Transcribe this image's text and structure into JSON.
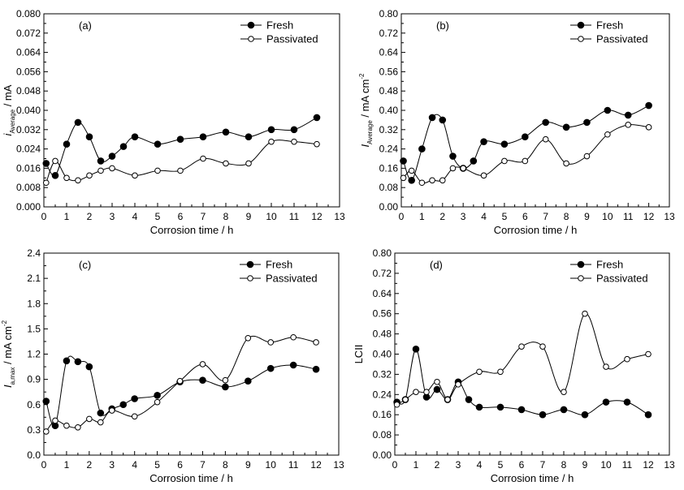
{
  "chart_data": [
    {
      "type": "scatter",
      "panel_label": "(a)",
      "xlabel": "Corrosion time / h",
      "ylabel": {
        "main": "i",
        "sub": "Average",
        "unit": " / mA",
        "sup": ""
      },
      "xlim": [
        0,
        13
      ],
      "ylim": [
        0,
        0.08
      ],
      "xticks": [
        "0",
        "1",
        "2",
        "3",
        "4",
        "5",
        "6",
        "7",
        "8",
        "9",
        "10",
        "11",
        "12",
        "13"
      ],
      "yticks": [
        "0.000",
        "0.008",
        "0.016",
        "0.024",
        "0.032",
        "0.040",
        "0.048",
        "0.056",
        "0.064",
        "0.072",
        "0.080"
      ],
      "legend_position": "top-right",
      "series": [
        {
          "name": "Fresh",
          "marker": "filled-circle",
          "x": [
            0.1,
            0.5,
            1,
            1.5,
            2,
            2.5,
            3,
            3.5,
            4,
            5,
            6,
            7,
            8,
            9,
            10,
            11,
            12
          ],
          "y": [
            0.018,
            0.013,
            0.026,
            0.035,
            0.029,
            0.019,
            0.021,
            0.025,
            0.029,
            0.026,
            0.028,
            0.029,
            0.031,
            0.029,
            0.032,
            0.032,
            0.037
          ]
        },
        {
          "name": "Passivated",
          "marker": "open-circle",
          "x": [
            0.1,
            0.5,
            1,
            1.5,
            2,
            2.5,
            3,
            4,
            5,
            6,
            7,
            8,
            9,
            10,
            11,
            12
          ],
          "y": [
            0.01,
            0.019,
            0.012,
            0.011,
            0.013,
            0.015,
            0.016,
            0.013,
            0.015,
            0.015,
            0.02,
            0.018,
            0.018,
            0.027,
            0.027,
            0.026
          ]
        }
      ]
    },
    {
      "type": "scatter",
      "panel_label": "(b)",
      "xlabel": "Corrosion time / h",
      "ylabel": {
        "main": "I",
        "sub": "Average",
        "unit": " / mA cm",
        "sup": "-2"
      },
      "xlim": [
        0,
        13
      ],
      "ylim": [
        0,
        0.8
      ],
      "xticks": [
        "0",
        "1",
        "2",
        "3",
        "4",
        "5",
        "6",
        "7",
        "8",
        "9",
        "10",
        "11",
        "12",
        "13"
      ],
      "yticks": [
        "0.00",
        "0.08",
        "0.16",
        "0.24",
        "0.32",
        "0.40",
        "0.48",
        "0.56",
        "0.64",
        "0.72",
        "0.80"
      ],
      "legend_position": "top-right",
      "series": [
        {
          "name": "Fresh",
          "marker": "filled-circle",
          "x": [
            0.1,
            0.5,
            1,
            1.5,
            2,
            2.5,
            3,
            3.5,
            4,
            5,
            6,
            7,
            8,
            9,
            10,
            11,
            12
          ],
          "y": [
            0.19,
            0.11,
            0.24,
            0.37,
            0.36,
            0.21,
            0.16,
            0.19,
            0.27,
            0.26,
            0.29,
            0.35,
            0.33,
            0.35,
            0.4,
            0.38,
            0.42
          ]
        },
        {
          "name": "Passivated",
          "marker": "open-circle",
          "x": [
            0.1,
            0.5,
            1,
            1.5,
            2,
            2.5,
            3,
            4,
            5,
            6,
            7,
            8,
            9,
            10,
            11,
            12
          ],
          "y": [
            0.12,
            0.15,
            0.1,
            0.11,
            0.11,
            0.16,
            0.16,
            0.13,
            0.19,
            0.19,
            0.28,
            0.18,
            0.21,
            0.3,
            0.34,
            0.33
          ]
        }
      ]
    },
    {
      "type": "scatter",
      "panel_label": "(c)",
      "xlabel": "Corrosion time / h",
      "ylabel": {
        "main": "I",
        "sub": "a,max",
        "unit": " / mA cm",
        "sup": "-2"
      },
      "xlim": [
        0,
        13
      ],
      "ylim": [
        0,
        2.4
      ],
      "xticks": [
        "0",
        "1",
        "2",
        "3",
        "4",
        "5",
        "6",
        "7",
        "8",
        "9",
        "10",
        "11",
        "12",
        "13"
      ],
      "yticks": [
        "0.0",
        "0.3",
        "0.6",
        "0.9",
        "1.2",
        "1.5",
        "1.8",
        "2.1",
        "2.4"
      ],
      "legend_position": "top-right",
      "series": [
        {
          "name": "Fresh",
          "marker": "filled-circle",
          "x": [
            0.1,
            0.5,
            1,
            1.5,
            2,
            2.5,
            3,
            3.5,
            4,
            5,
            6,
            7,
            8,
            9,
            10,
            11,
            12
          ],
          "y": [
            0.64,
            0.35,
            1.12,
            1.11,
            1.05,
            0.5,
            0.55,
            0.6,
            0.67,
            0.71,
            0.87,
            0.89,
            0.81,
            0.88,
            1.03,
            1.07,
            1.02
          ]
        },
        {
          "name": "Passivated",
          "marker": "open-circle",
          "x": [
            0.1,
            0.5,
            1,
            1.5,
            2,
            2.5,
            3,
            4,
            5,
            6,
            7,
            8,
            9,
            10,
            11,
            12
          ],
          "y": [
            0.28,
            0.41,
            0.35,
            0.33,
            0.43,
            0.39,
            0.53,
            0.46,
            0.63,
            0.88,
            1.08,
            0.89,
            1.39,
            1.34,
            1.4,
            1.34
          ]
        }
      ]
    },
    {
      "type": "scatter",
      "panel_label": "(d)",
      "xlabel": "Corrosion time / h",
      "ylabel": {
        "main": "LCII",
        "sub": "",
        "unit": "",
        "sup": ""
      },
      "xlim": [
        0,
        13
      ],
      "ylim": [
        0,
        0.8
      ],
      "xticks": [
        "0",
        "1",
        "2",
        "3",
        "4",
        "5",
        "6",
        "7",
        "8",
        "9",
        "10",
        "11",
        "12",
        "13"
      ],
      "yticks": [
        "0.00",
        "0.08",
        "0.16",
        "0.24",
        "0.32",
        "0.40",
        "0.48",
        "0.56",
        "0.64",
        "0.72",
        "0.80"
      ],
      "legend_position": "top-right",
      "series": [
        {
          "name": "Fresh",
          "marker": "filled-circle",
          "x": [
            0.1,
            0.5,
            1,
            1.5,
            2,
            2.5,
            3,
            3.5,
            4,
            5,
            6,
            7,
            8,
            9,
            10,
            11,
            12
          ],
          "y": [
            0.21,
            0.22,
            0.42,
            0.23,
            0.26,
            0.22,
            0.29,
            0.22,
            0.19,
            0.19,
            0.18,
            0.16,
            0.18,
            0.16,
            0.21,
            0.21,
            0.16
          ]
        },
        {
          "name": "Passivated",
          "marker": "open-circle",
          "x": [
            0.1,
            0.5,
            1,
            1.5,
            2,
            2.5,
            3,
            4,
            5,
            6,
            7,
            8,
            9,
            10,
            11,
            12
          ],
          "y": [
            0.2,
            0.22,
            0.25,
            0.25,
            0.29,
            0.22,
            0.28,
            0.33,
            0.33,
            0.43,
            0.43,
            0.25,
            0.56,
            0.35,
            0.38,
            0.4
          ]
        }
      ]
    }
  ]
}
